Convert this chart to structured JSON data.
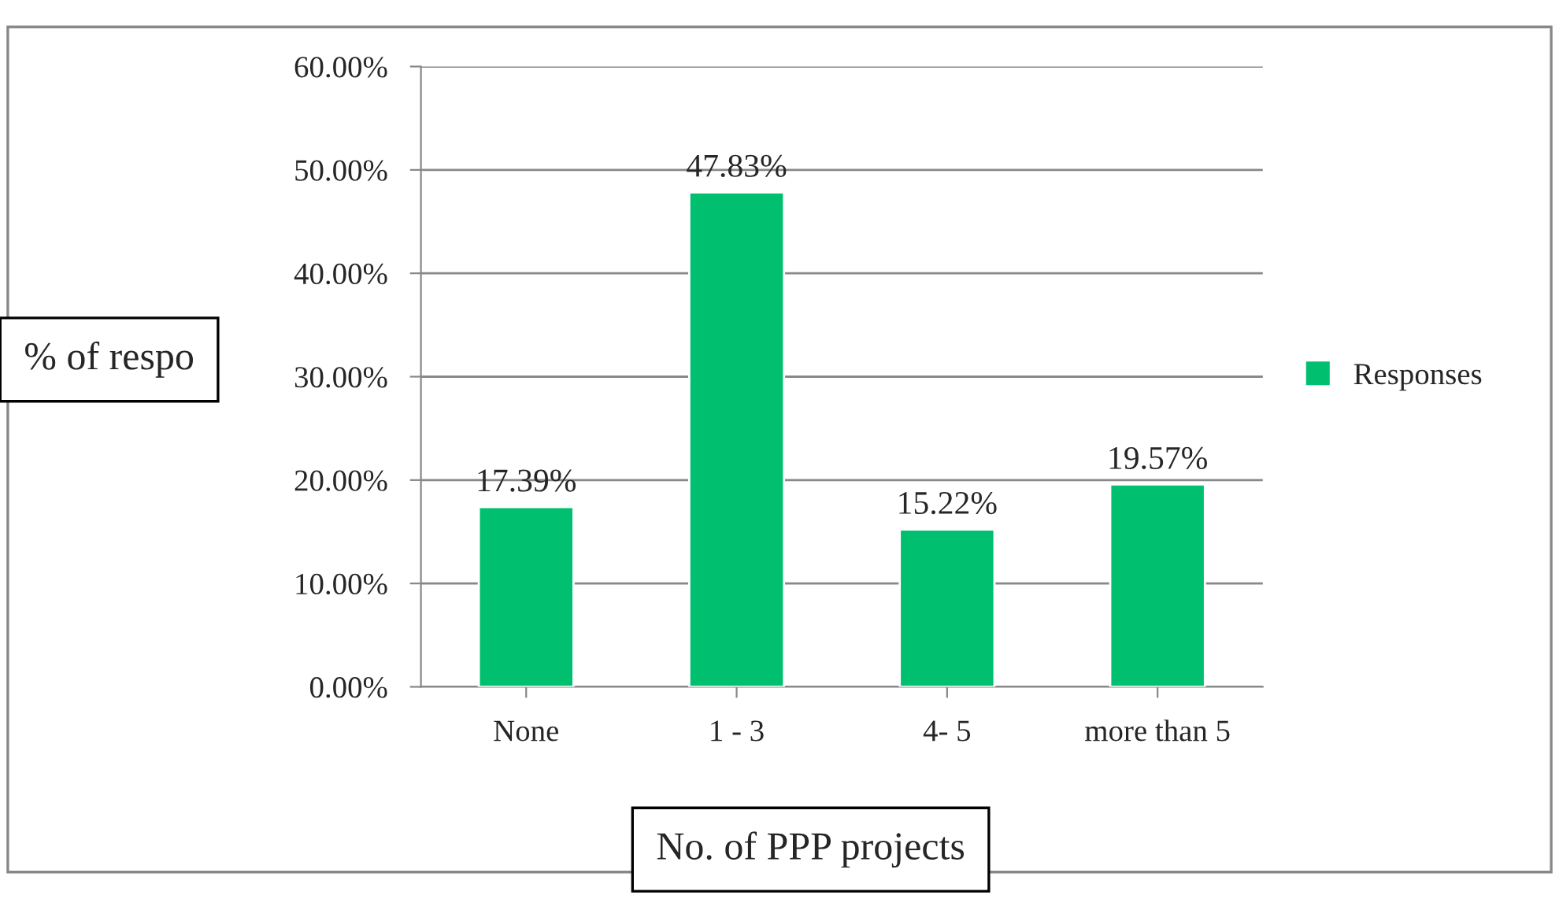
{
  "chart_data": {
    "type": "bar",
    "xlabel": "No. of PPP projects",
    "ylabel": "% of respo",
    "categories": [
      "None",
      "1 - 3",
      "4- 5",
      "more than 5"
    ],
    "series": [
      {
        "name": "Responses",
        "color": "#00c070",
        "values": [
          17.39,
          47.83,
          15.22,
          19.57
        ]
      }
    ],
    "value_labels": [
      "17.39%",
      "47.83%",
      "15.22%",
      "19.57%"
    ],
    "ylim": [
      0,
      60
    ],
    "yticks": [
      {
        "value": 0,
        "label": "0.00%"
      },
      {
        "value": 10,
        "label": "10.00%"
      },
      {
        "value": 20,
        "label": "20.00%"
      },
      {
        "value": 30,
        "label": "30.00%"
      },
      {
        "value": 40,
        "label": "40.00%"
      },
      {
        "value": 50,
        "label": "50.00%"
      },
      {
        "value": 60,
        "label": "60.00%"
      }
    ],
    "grid": "y",
    "legend": "right"
  }
}
